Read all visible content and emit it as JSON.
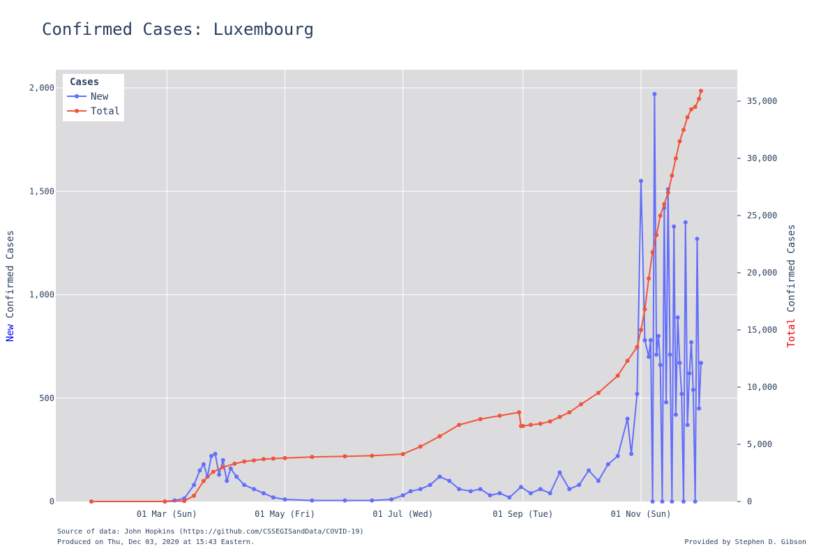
{
  "title": "Confirmed Cases: Luxembourg",
  "colors": {
    "new": "#636efa",
    "total": "#ef553b",
    "plot_bg": "#dcdcde",
    "grid": "#ffffff",
    "text": "#2a3f5f"
  },
  "footer": {
    "source": "Source of data: John Hopkins (https://github.com/CSSEGISandData/COVID-19)",
    "produced": "Produced on Thu, Dec 03, 2020 at 15:43 Eastern.",
    "provided": "Provided by Stephen D. Gibson"
  },
  "chart_data": {
    "type": "line",
    "title": "Confirmed Cases: Luxembourg",
    "x_axis": {
      "type": "date",
      "range": [
        "2020-01-22",
        "2020-12-02"
      ],
      "tick_labels": [
        "01 Mar (Sun)",
        "01 May (Fri)",
        "01 Jul (Wed)",
        "01 Sep (Tue)",
        "01 Nov (Sun)"
      ],
      "tick_dates": [
        "2020-03-01",
        "2020-05-01",
        "2020-07-01",
        "2020-09-01",
        "2020-11-01"
      ]
    },
    "y_left": {
      "label_prefix": "New",
      "label_suffix": " Confirmed Cases",
      "range": [
        0,
        2000
      ],
      "ticks": [
        0,
        500,
        1000,
        1500,
        2000
      ],
      "tick_labels": [
        "0",
        "500",
        "1,000",
        "1,500",
        "2,000"
      ]
    },
    "y_right": {
      "label_prefix": "Total",
      "label_suffix": " Confirmed Cases",
      "range": [
        0,
        36000
      ],
      "ticks": [
        0,
        5000,
        10000,
        15000,
        20000,
        25000,
        30000,
        35000
      ],
      "tick_labels": [
        "0",
        "5,000",
        "10,000",
        "15,000",
        "20,000",
        "25,000",
        "30,000",
        "35,000"
      ]
    },
    "grid": true,
    "legend": {
      "title": "Cases",
      "position": "top-left"
    },
    "series": [
      {
        "name": "New",
        "axis": "left",
        "x": [
          "2020-01-22",
          "2020-02-29",
          "2020-03-05",
          "2020-03-10",
          "2020-03-15",
          "2020-03-18",
          "2020-03-20",
          "2020-03-22",
          "2020-03-24",
          "2020-03-26",
          "2020-03-28",
          "2020-03-30",
          "2020-04-01",
          "2020-04-03",
          "2020-04-06",
          "2020-04-10",
          "2020-04-15",
          "2020-04-20",
          "2020-04-25",
          "2020-05-01",
          "2020-05-15",
          "2020-06-01",
          "2020-06-15",
          "2020-06-25",
          "2020-07-01",
          "2020-07-05",
          "2020-07-10",
          "2020-07-15",
          "2020-07-20",
          "2020-07-25",
          "2020-07-30",
          "2020-08-05",
          "2020-08-10",
          "2020-08-15",
          "2020-08-20",
          "2020-08-25",
          "2020-08-31",
          "2020-09-05",
          "2020-09-10",
          "2020-09-15",
          "2020-09-20",
          "2020-09-25",
          "2020-09-30",
          "2020-10-05",
          "2020-10-10",
          "2020-10-15",
          "2020-10-20",
          "2020-10-25",
          "2020-10-27",
          "2020-10-30",
          "2020-11-01",
          "2020-11-03",
          "2020-11-05",
          "2020-11-06",
          "2020-11-07",
          "2020-11-08",
          "2020-11-09",
          "2020-11-10",
          "2020-11-11",
          "2020-11-12",
          "2020-11-13",
          "2020-11-14",
          "2020-11-15",
          "2020-11-16",
          "2020-11-17",
          "2020-11-18",
          "2020-11-19",
          "2020-11-20",
          "2020-11-21",
          "2020-11-22",
          "2020-11-23",
          "2020-11-24",
          "2020-11-25",
          "2020-11-26",
          "2020-11-27",
          "2020-11-28",
          "2020-11-29",
          "2020-11-30",
          "2020-12-01",
          "2020-12-02"
        ],
        "values": [
          0,
          0,
          5,
          15,
          80,
          150,
          180,
          120,
          220,
          230,
          130,
          200,
          100,
          160,
          120,
          80,
          60,
          40,
          20,
          10,
          5,
          5,
          5,
          10,
          30,
          50,
          60,
          80,
          120,
          100,
          60,
          50,
          60,
          30,
          40,
          20,
          70,
          40,
          60,
          40,
          140,
          60,
          80,
          150,
          100,
          180,
          220,
          400,
          230,
          520,
          1550,
          780,
          700,
          780,
          0,
          1970,
          710,
          800,
          660,
          0,
          1420,
          480,
          1510,
          710,
          0,
          1330,
          420,
          890,
          670,
          520,
          0,
          1350,
          370,
          620,
          770,
          540,
          0,
          1270,
          450,
          670
        ]
      },
      {
        "name": "Total",
        "axis": "right",
        "x": [
          "2020-01-22",
          "2020-02-29",
          "2020-03-10",
          "2020-03-15",
          "2020-03-20",
          "2020-03-25",
          "2020-03-30",
          "2020-04-05",
          "2020-04-10",
          "2020-04-15",
          "2020-04-20",
          "2020-04-25",
          "2020-05-01",
          "2020-05-15",
          "2020-06-01",
          "2020-06-15",
          "2020-07-01",
          "2020-07-10",
          "2020-07-20",
          "2020-07-30",
          "2020-08-10",
          "2020-08-20",
          "2020-08-30",
          "2020-08-31",
          "2020-09-01",
          "2020-09-05",
          "2020-09-10",
          "2020-09-15",
          "2020-09-20",
          "2020-09-25",
          "2020-10-01",
          "2020-10-10",
          "2020-10-20",
          "2020-10-25",
          "2020-10-30",
          "2020-11-01",
          "2020-11-03",
          "2020-11-05",
          "2020-11-07",
          "2020-11-09",
          "2020-11-11",
          "2020-11-13",
          "2020-11-15",
          "2020-11-17",
          "2020-11-19",
          "2020-11-21",
          "2020-11-23",
          "2020-11-25",
          "2020-11-27",
          "2020-11-29",
          "2020-12-01",
          "2020-12-02"
        ],
        "values": [
          0,
          0,
          50,
          500,
          1800,
          2600,
          3000,
          3300,
          3500,
          3600,
          3700,
          3750,
          3800,
          3900,
          3950,
          4000,
          4150,
          4800,
          5700,
          6700,
          7200,
          7500,
          7800,
          6600,
          6600,
          6700,
          6800,
          7000,
          7400,
          7800,
          8500,
          9500,
          11000,
          12300,
          13500,
          15000,
          16800,
          19500,
          21800,
          23300,
          25000,
          26000,
          27000,
          28500,
          30000,
          31500,
          32500,
          33600,
          34300,
          34500,
          35200,
          35900
        ]
      }
    ]
  }
}
